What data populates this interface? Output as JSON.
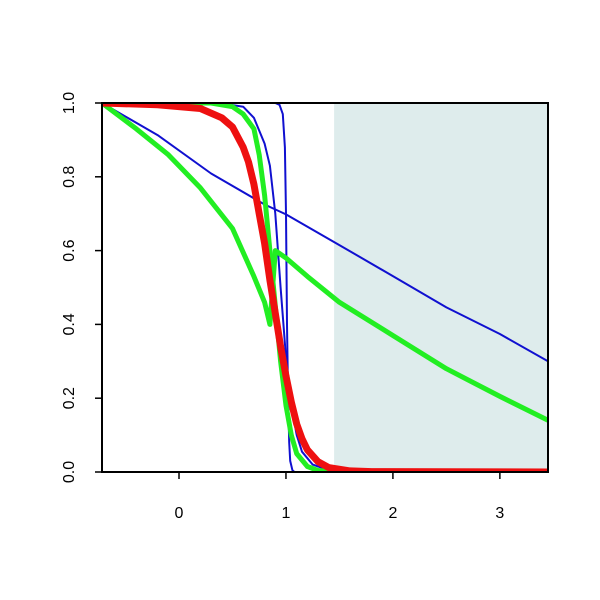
{
  "chart_data": {
    "type": "line",
    "title": "",
    "xlabel": "",
    "ylabel": "",
    "xlim": [
      -0.72,
      3.45
    ],
    "ylim": [
      0.0,
      1.0
    ],
    "x_ticks": [
      {
        "value": 0,
        "label": "0"
      },
      {
        "value": 1,
        "label": "1"
      },
      {
        "value": 2,
        "label": "2"
      },
      {
        "value": 3,
        "label": "3"
      }
    ],
    "y_ticks": [
      {
        "value": 0.0,
        "label": "0.0"
      },
      {
        "value": 0.2,
        "label": "0.2"
      },
      {
        "value": 0.4,
        "label": "0.4"
      },
      {
        "value": 0.6,
        "label": "0.6"
      },
      {
        "value": 0.8,
        "label": "0.8"
      },
      {
        "value": 1.0,
        "label": "1.0"
      }
    ],
    "grid": false,
    "legend": "none",
    "shaded_region": {
      "x_from": 1.45,
      "x_to": 3.45,
      "y_from": 0.0,
      "y_to": 1.0,
      "color": "#deecec"
    },
    "series": [
      {
        "color": "#1010d0",
        "width": 2,
        "points": [
          [
            -0.72,
            1.0
          ],
          [
            -0.2,
            0.913
          ],
          [
            0.3,
            0.809
          ],
          [
            0.8,
            0.725
          ],
          [
            1.0,
            0.698
          ],
          [
            1.5,
            0.615
          ],
          [
            2.0,
            0.531
          ],
          [
            2.5,
            0.446
          ],
          [
            3.0,
            0.374
          ],
          [
            3.45,
            0.3
          ]
        ]
      },
      {
        "color": "#1010d0",
        "width": 2,
        "points": [
          [
            -0.72,
            1.0
          ],
          [
            0.0,
            1.0
          ],
          [
            0.4,
            0.999
          ],
          [
            0.6,
            0.99
          ],
          [
            0.7,
            0.96
          ],
          [
            0.8,
            0.89
          ],
          [
            0.85,
            0.83
          ],
          [
            0.9,
            0.7
          ],
          [
            0.95,
            0.5
          ],
          [
            1.0,
            0.31
          ],
          [
            1.05,
            0.18
          ],
          [
            1.1,
            0.1
          ],
          [
            1.15,
            0.055
          ],
          [
            1.25,
            0.02
          ],
          [
            1.4,
            0.005
          ],
          [
            1.6,
            0.001
          ],
          [
            3.45,
            0.0
          ]
        ]
      },
      {
        "color": "#1010d0",
        "width": 2,
        "points": [
          [
            -0.72,
            1.0
          ],
          [
            0.9,
            1.0
          ],
          [
            0.94,
            0.995
          ],
          [
            0.97,
            0.97
          ],
          [
            0.99,
            0.88
          ],
          [
            1.0,
            0.7
          ],
          [
            1.01,
            0.4
          ],
          [
            1.02,
            0.2
          ],
          [
            1.03,
            0.08
          ],
          [
            1.04,
            0.03
          ],
          [
            1.06,
            0.005
          ],
          [
            1.08,
            0.0
          ],
          [
            3.45,
            0.0
          ]
        ]
      },
      {
        "color": "#22ee22",
        "width": 5,
        "points": [
          [
            -0.72,
            1.0
          ],
          [
            -0.4,
            0.93
          ],
          [
            -0.1,
            0.86
          ],
          [
            0.2,
            0.77
          ],
          [
            0.5,
            0.66
          ],
          [
            0.7,
            0.53
          ],
          [
            0.8,
            0.46
          ],
          [
            0.85,
            0.4
          ],
          [
            0.9,
            0.6
          ],
          [
            1.0,
            0.58
          ],
          [
            1.2,
            0.53
          ],
          [
            1.5,
            0.46
          ],
          [
            2.0,
            0.37
          ],
          [
            2.5,
            0.28
          ],
          [
            3.0,
            0.205
          ],
          [
            3.45,
            0.14
          ]
        ]
      },
      {
        "color": "#22ee22",
        "width": 5,
        "points": [
          [
            -0.72,
            1.0
          ],
          [
            0.3,
            1.0
          ],
          [
            0.5,
            0.99
          ],
          [
            0.6,
            0.97
          ],
          [
            0.7,
            0.93
          ],
          [
            0.75,
            0.86
          ],
          [
            0.8,
            0.75
          ],
          [
            0.85,
            0.6
          ],
          [
            0.9,
            0.45
          ],
          [
            0.95,
            0.3
          ],
          [
            1.0,
            0.18
          ],
          [
            1.05,
            0.1
          ],
          [
            1.1,
            0.05
          ],
          [
            1.2,
            0.015
          ],
          [
            1.3,
            0.004
          ],
          [
            1.45,
            0.001
          ],
          [
            3.45,
            0.0
          ]
        ]
      },
      {
        "color": "#ee1010",
        "width": 7,
        "points": [
          [
            -0.72,
            1.0
          ],
          [
            -0.2,
            0.995
          ],
          [
            0.2,
            0.985
          ],
          [
            0.4,
            0.96
          ],
          [
            0.5,
            0.935
          ],
          [
            0.6,
            0.88
          ],
          [
            0.65,
            0.84
          ],
          [
            0.7,
            0.78
          ],
          [
            0.75,
            0.7
          ],
          [
            0.8,
            0.62
          ],
          [
            0.85,
            0.52
          ],
          [
            0.9,
            0.43
          ],
          [
            0.95,
            0.34
          ],
          [
            1.0,
            0.26
          ],
          [
            1.05,
            0.19
          ],
          [
            1.1,
            0.13
          ],
          [
            1.15,
            0.09
          ],
          [
            1.2,
            0.06
          ],
          [
            1.3,
            0.028
          ],
          [
            1.4,
            0.012
          ],
          [
            1.6,
            0.003
          ],
          [
            1.8,
            0.001
          ],
          [
            3.45,
            0.0
          ]
        ]
      }
    ]
  }
}
